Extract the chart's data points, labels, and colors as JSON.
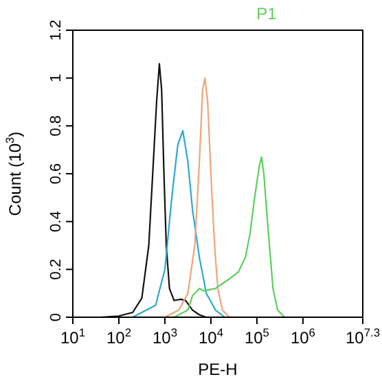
{
  "chart_data": {
    "type": "line",
    "xlabel": "PE-H",
    "ylabel": "Count (10$^{3}$)",
    "annotations": [
      "P1"
    ],
    "log": "x",
    "grid": false,
    "marker": "none",
    "line_style": "solid",
    "xlim": [
      10,
      19952623
    ],
    "xticks": [
      {
        "value": 10,
        "label": "10$^{1}$"
      },
      {
        "value": 100,
        "label": "10$^{2}$"
      },
      {
        "value": 1000,
        "label": "10$^{3}$"
      },
      {
        "value": 10000,
        "label": "10$^{4}$"
      },
      {
        "value": 100000,
        "label": "10$^{5}$"
      },
      {
        "value": 1000000,
        "label": "10$^{6}$"
      },
      {
        "value": 19952623,
        "label": "10$^{7.3}$"
      }
    ],
    "ylim": [
      0,
      1.2
    ],
    "yticks": [
      0,
      0.2,
      0.4,
      0.6,
      0.8,
      1,
      1.2
    ],
    "series": [
      {
        "color": "#111111",
        "x": [
          40,
          100,
          200,
          316,
          447,
          562,
          661,
          759,
          851,
          955,
          1072,
          1259,
          1585,
          2239,
          2818,
          3981,
          5623,
          7943
        ],
        "values": [
          0,
          0.005,
          0.02,
          0.08,
          0.3,
          0.65,
          0.9,
          1.06,
          0.95,
          0.6,
          0.3,
          0.12,
          0.07,
          0.075,
          0.07,
          0.03,
          0.01,
          0
        ]
      },
      {
        "color": "#2aa8d0",
        "x": [
          200,
          631,
          1000,
          1413,
          1905,
          2455,
          3162,
          3981,
          5623,
          7943,
          12589,
          19953
        ],
        "values": [
          0,
          0.05,
          0.2,
          0.5,
          0.72,
          0.78,
          0.65,
          0.45,
          0.25,
          0.1,
          0.03,
          0
        ]
      },
      {
        "color": "#eea57a",
        "x": [
          1000,
          1995,
          3162,
          4467,
          5623,
          6607,
          7413,
          8511,
          10000,
          12023,
          14125,
          17783,
          25119
        ],
        "values": [
          0,
          0.03,
          0.1,
          0.3,
          0.65,
          0.95,
          1.0,
          0.9,
          0.6,
          0.3,
          0.12,
          0.03,
          0
        ]
      },
      {
        "color": "#5ccf5c",
        "x": [
          1585,
          3162,
          3981,
          5623,
          7079,
          12589,
          25119,
          39811,
          56234,
          70795,
          89125,
          112202,
          125893,
          141254,
          177828,
          223872,
          281838,
          398107
        ],
        "values": [
          0,
          0.03,
          0.09,
          0.12,
          0.11,
          0.12,
          0.16,
          0.19,
          0.25,
          0.35,
          0.5,
          0.63,
          0.67,
          0.6,
          0.35,
          0.12,
          0.03,
          0
        ]
      }
    ]
  }
}
